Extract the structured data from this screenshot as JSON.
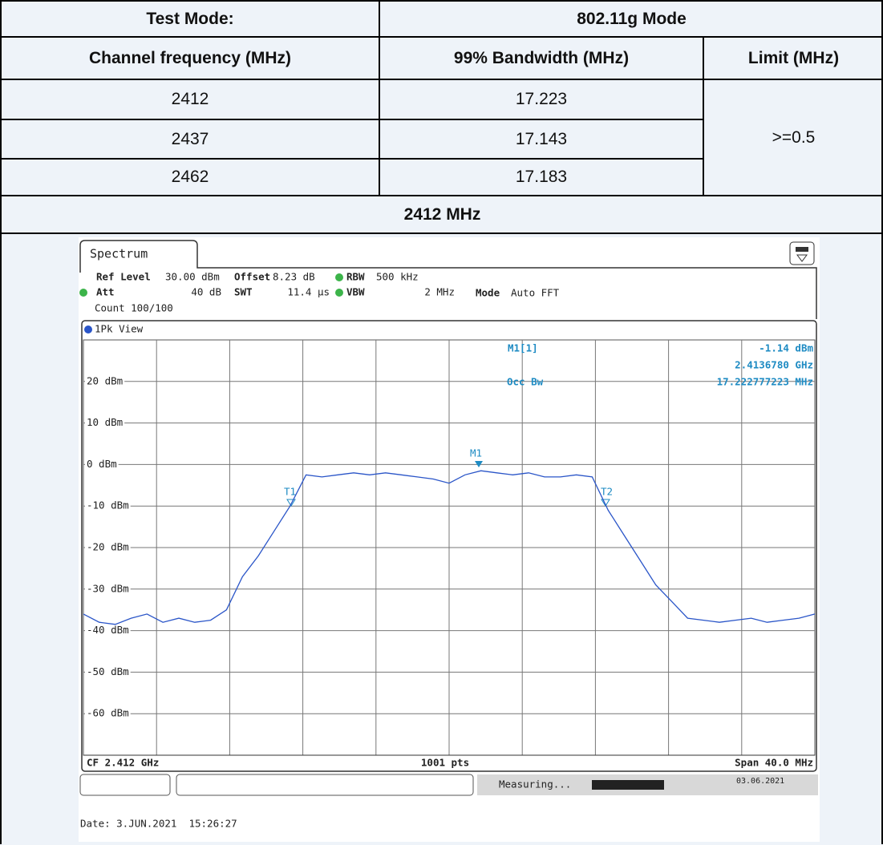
{
  "table": {
    "header": [
      "Test Mode:",
      "802.11g Mode"
    ],
    "columns": [
      "Channel frequency (MHz)",
      "99% Bandwidth (MHz)",
      "Limit (MHz)"
    ],
    "rows": [
      [
        2412,
        17.223
      ],
      [
        2437,
        17.143
      ],
      [
        2462,
        17.183
      ]
    ],
    "limit": ">=0.5",
    "section": "2412 MHz"
  },
  "spectrum": {
    "type": "line",
    "tab": "Spectrum",
    "ref_level_label": "Ref Level",
    "ref_level": "30.00 dBm",
    "offset_label": "Offset",
    "offset": "8.23 dB",
    "rbw_label": "RBW",
    "rbw": "500 kHz",
    "att_label": "Att",
    "att": "40 dB",
    "swt_label": "SWT",
    "swt": "11.4 µs",
    "vbw_label": "VBW",
    "vbw": "2 MHz",
    "mode_label": "Mode",
    "mode": "Auto FFT",
    "count": "Count 100/100",
    "view": "1Pk View",
    "marker_name": "M1[1]",
    "marker_level": "-1.14 dBm",
    "marker_freq": "2.4136780 GHz",
    "occ_label": "Occ Bw",
    "occ_value": "17.222777223 MHz",
    "markers": [
      "M1",
      "T1",
      "T2"
    ],
    "cf": "CF 2.412 GHz",
    "points": "1001 pts",
    "span": "Span 40.0 MHz",
    "status": "Measuring...",
    "status_date": "03.06.2021",
    "date": "Date: 3.JUN.2021  15:26:27",
    "ylim": [
      -70,
      30
    ],
    "yticks": [
      {
        "value": 20,
        "label": "20 dBm"
      },
      {
        "value": 10,
        "label": "10 dBm"
      },
      {
        "value": 0,
        "label": "0 dBm"
      },
      {
        "value": -10,
        "label": "-10 dBm"
      },
      {
        "value": -20,
        "label": "-20 dBm"
      },
      {
        "value": -30,
        "label": "-30 dBm"
      },
      {
        "value": -40,
        "label": "-40 dBm"
      },
      {
        "value": -50,
        "label": "-50 dBm"
      },
      {
        "value": -60,
        "label": "-60 dBm"
      }
    ],
    "color": "#2a55c8",
    "trace": [
      -36,
      -38,
      -38.5,
      -37,
      -36,
      -38,
      -37,
      -38,
      -37.5,
      -35,
      -27,
      -22,
      -16,
      -10,
      -2.5,
      -3,
      -2.5,
      -2,
      -2.5,
      -2,
      -2.5,
      -3,
      -3.5,
      -4.5,
      -2.5,
      -1.5,
      -2,
      -2.5,
      -2,
      -3,
      -3,
      -2.5,
      -3,
      -11,
      -17,
      -23,
      -29,
      -33,
      -37,
      -37.5,
      -38,
      -37.5,
      -37,
      -38,
      -37.5,
      -37,
      -36
    ]
  }
}
